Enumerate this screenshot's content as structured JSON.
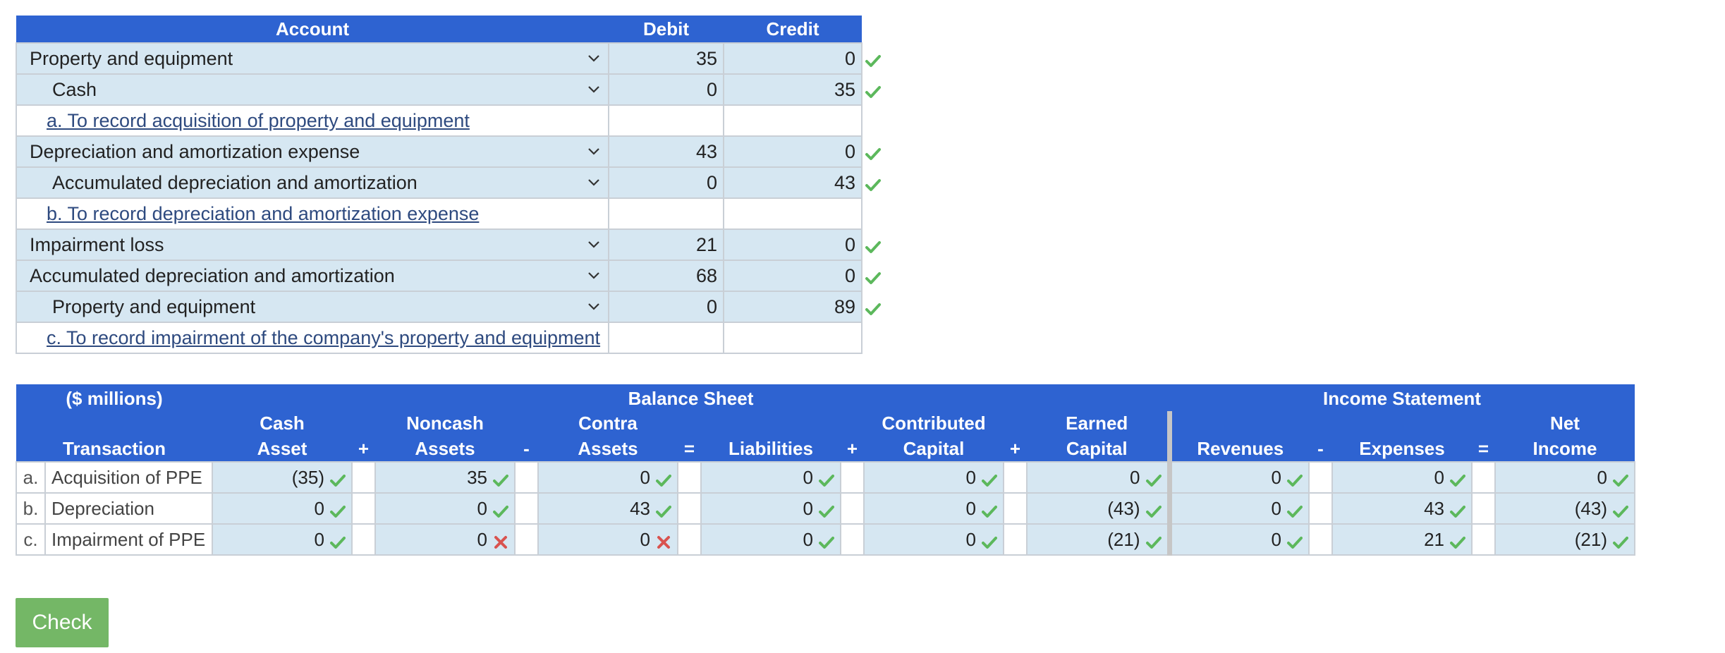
{
  "journal": {
    "headers": {
      "account": "Account",
      "debit": "Debit",
      "credit": "Credit"
    },
    "rows": [
      {
        "type": "entry",
        "account": "Property and equipment",
        "indent": false,
        "debit": "35",
        "credit": "0",
        "status": "correct"
      },
      {
        "type": "entry",
        "account": "Cash",
        "indent": true,
        "debit": "0",
        "credit": "35",
        "status": "correct"
      },
      {
        "type": "note",
        "text": "a. To record acquisition of property and equipment"
      },
      {
        "type": "entry",
        "account": "Depreciation and amortization expense",
        "indent": false,
        "debit": "43",
        "credit": "0",
        "status": "correct"
      },
      {
        "type": "entry",
        "account": "Accumulated depreciation and amortization",
        "indent": true,
        "debit": "0",
        "credit": "43",
        "status": "correct"
      },
      {
        "type": "note",
        "text": "b. To record depreciation and amortization expense"
      },
      {
        "type": "entry",
        "account": "Impairment loss",
        "indent": false,
        "debit": "21",
        "credit": "0",
        "status": "correct"
      },
      {
        "type": "entry",
        "account": "Accumulated depreciation and amortization",
        "indent": false,
        "debit": "68",
        "credit": "0",
        "status": "correct"
      },
      {
        "type": "entry",
        "account": "Property and equipment",
        "indent": true,
        "debit": "0",
        "credit": "89",
        "status": "correct"
      },
      {
        "type": "note",
        "text": "c. To record impairment of the company's property and equipment"
      }
    ]
  },
  "equation": {
    "group_headers": {
      "units": "($ millions)",
      "balance_sheet": "Balance Sheet",
      "income_statement": "Income Statement"
    },
    "columns": {
      "transaction": [
        "",
        "Transaction"
      ],
      "cash_asset": [
        "Cash",
        "Asset"
      ],
      "op1": "+",
      "noncash_assets": [
        "Noncash",
        "Assets"
      ],
      "op2": "-",
      "contra_assets": [
        "Contra",
        "Assets"
      ],
      "op3": "=",
      "liabilities": [
        "",
        "Liabilities"
      ],
      "op4": "+",
      "contributed_capital": [
        "Contributed",
        "Capital"
      ],
      "op5": "+",
      "earned_capital": [
        "Earned",
        "Capital"
      ],
      "revenues": [
        "",
        "Revenues"
      ],
      "op6": "-",
      "expenses": [
        "",
        "Expenses"
      ],
      "op7": "=",
      "net_income": [
        "Net",
        "Income"
      ]
    },
    "rows": [
      {
        "letter": "a.",
        "transaction": "Acquisition of PPE",
        "cash_asset": "(35)",
        "cash_asset_status": "correct",
        "noncash_assets": "35",
        "noncash_assets_status": "correct",
        "contra_assets": "0",
        "contra_assets_status": "correct",
        "liabilities": "0",
        "liabilities_status": "correct",
        "contributed_capital": "0",
        "contributed_capital_status": "correct",
        "earned_capital": "0",
        "earned_capital_status": "correct",
        "revenues": "0",
        "revenues_status": "correct",
        "expenses": "0",
        "expenses_status": "correct",
        "net_income": "0",
        "net_income_status": "correct"
      },
      {
        "letter": "b.",
        "transaction": "Depreciation",
        "cash_asset": "0",
        "cash_asset_status": "correct",
        "noncash_assets": "0",
        "noncash_assets_status": "correct",
        "contra_assets": "43",
        "contra_assets_status": "correct",
        "liabilities": "0",
        "liabilities_status": "correct",
        "contributed_capital": "0",
        "contributed_capital_status": "correct",
        "earned_capital": "(43)",
        "earned_capital_status": "correct",
        "revenues": "0",
        "revenues_status": "correct",
        "expenses": "43",
        "expenses_status": "correct",
        "net_income": "(43)",
        "net_income_status": "correct"
      },
      {
        "letter": "c.",
        "transaction": "Impairment of PPE",
        "cash_asset": "0",
        "cash_asset_status": "correct",
        "noncash_assets": "0",
        "noncash_assets_status": "incorrect",
        "contra_assets": "0",
        "contra_assets_status": "incorrect",
        "liabilities": "0",
        "liabilities_status": "correct",
        "contributed_capital": "0",
        "contributed_capital_status": "correct",
        "earned_capital": "(21)",
        "earned_capital_status": "correct",
        "revenues": "0",
        "revenues_status": "correct",
        "expenses": "21",
        "expenses_status": "correct",
        "net_income": "(21)",
        "net_income_status": "correct"
      }
    ]
  },
  "check_button": {
    "label": "Check"
  },
  "colors": {
    "header_bg": "#2e63d1",
    "cell_bg": "#d6e7f2",
    "correct": "#5cb85c",
    "incorrect": "#d9534f",
    "button": "#74b766"
  }
}
